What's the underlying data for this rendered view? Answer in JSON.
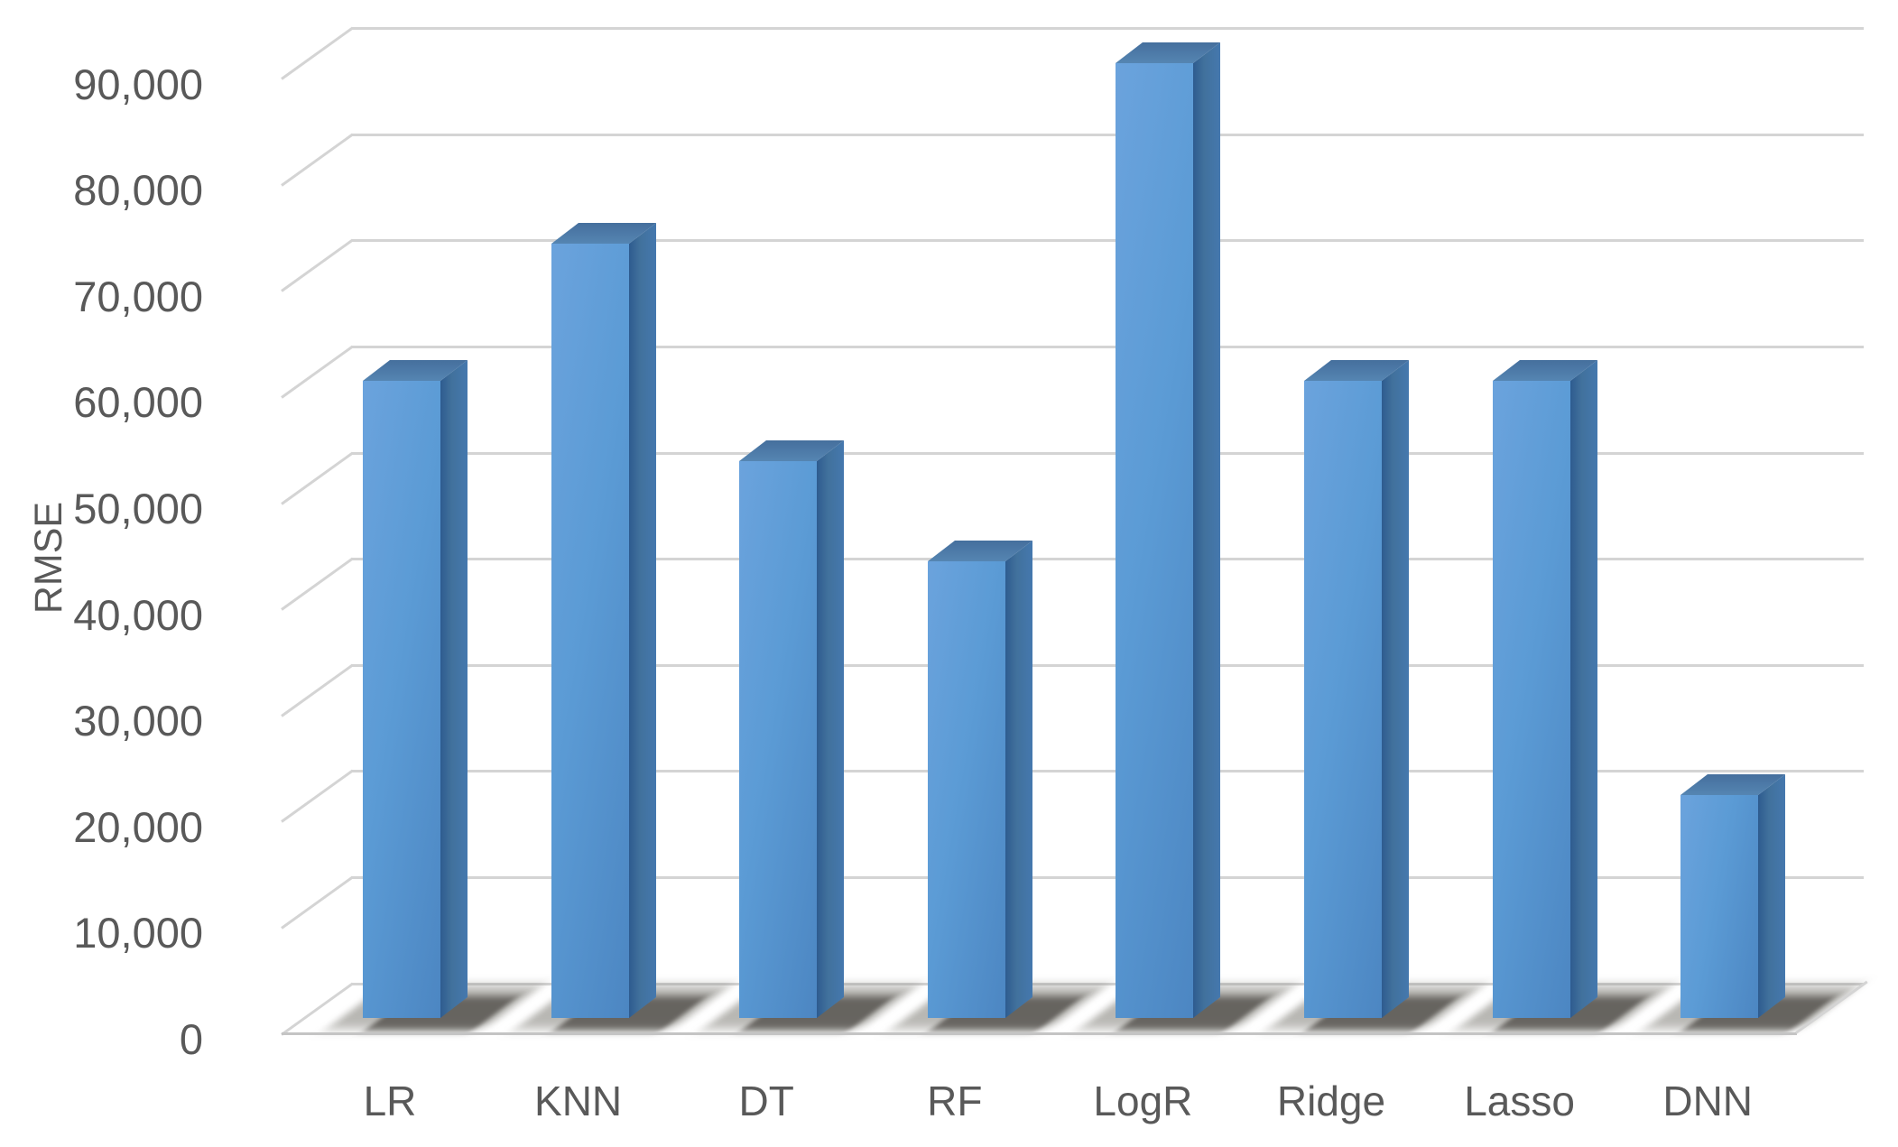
{
  "figure": {
    "ylabel": "RMSE"
  },
  "chart_data": {
    "type": "bar",
    "projection": "3d-column",
    "title": "",
    "xlabel": "",
    "ylabel": "RMSE",
    "categories": [
      "LR",
      "KNN",
      "DT",
      "RF",
      "LogR",
      "Ridge",
      "Lasso",
      "DNN"
    ],
    "series": [
      {
        "name": "RMSE",
        "values": [
          60000,
          73000,
          52500,
          43000,
          90000,
          60000,
          60000,
          21000
        ]
      }
    ],
    "ylim": [
      0,
      90000
    ],
    "ytick_step": 10000,
    "ytick_labels": [
      "0",
      "10,000",
      "20,000",
      "30,000",
      "40,000",
      "50,000",
      "60,000",
      "70,000",
      "80,000",
      "90,000"
    ],
    "grid": true,
    "legend": false,
    "colors": {
      "bar_front": "#5b9bd5",
      "bar_front_light": "#6ba3dd",
      "bar_front_dark": "#4c86c2",
      "bar_side": "#41719c",
      "bar_side_dark": "#2e5b8f",
      "bar_top": "#456f9d",
      "gridline": "#d4d4d4",
      "axis_line": "#c4c4c4",
      "label_text": "#595959",
      "shadow": "#3a3832",
      "background": "#ffffff"
    }
  }
}
